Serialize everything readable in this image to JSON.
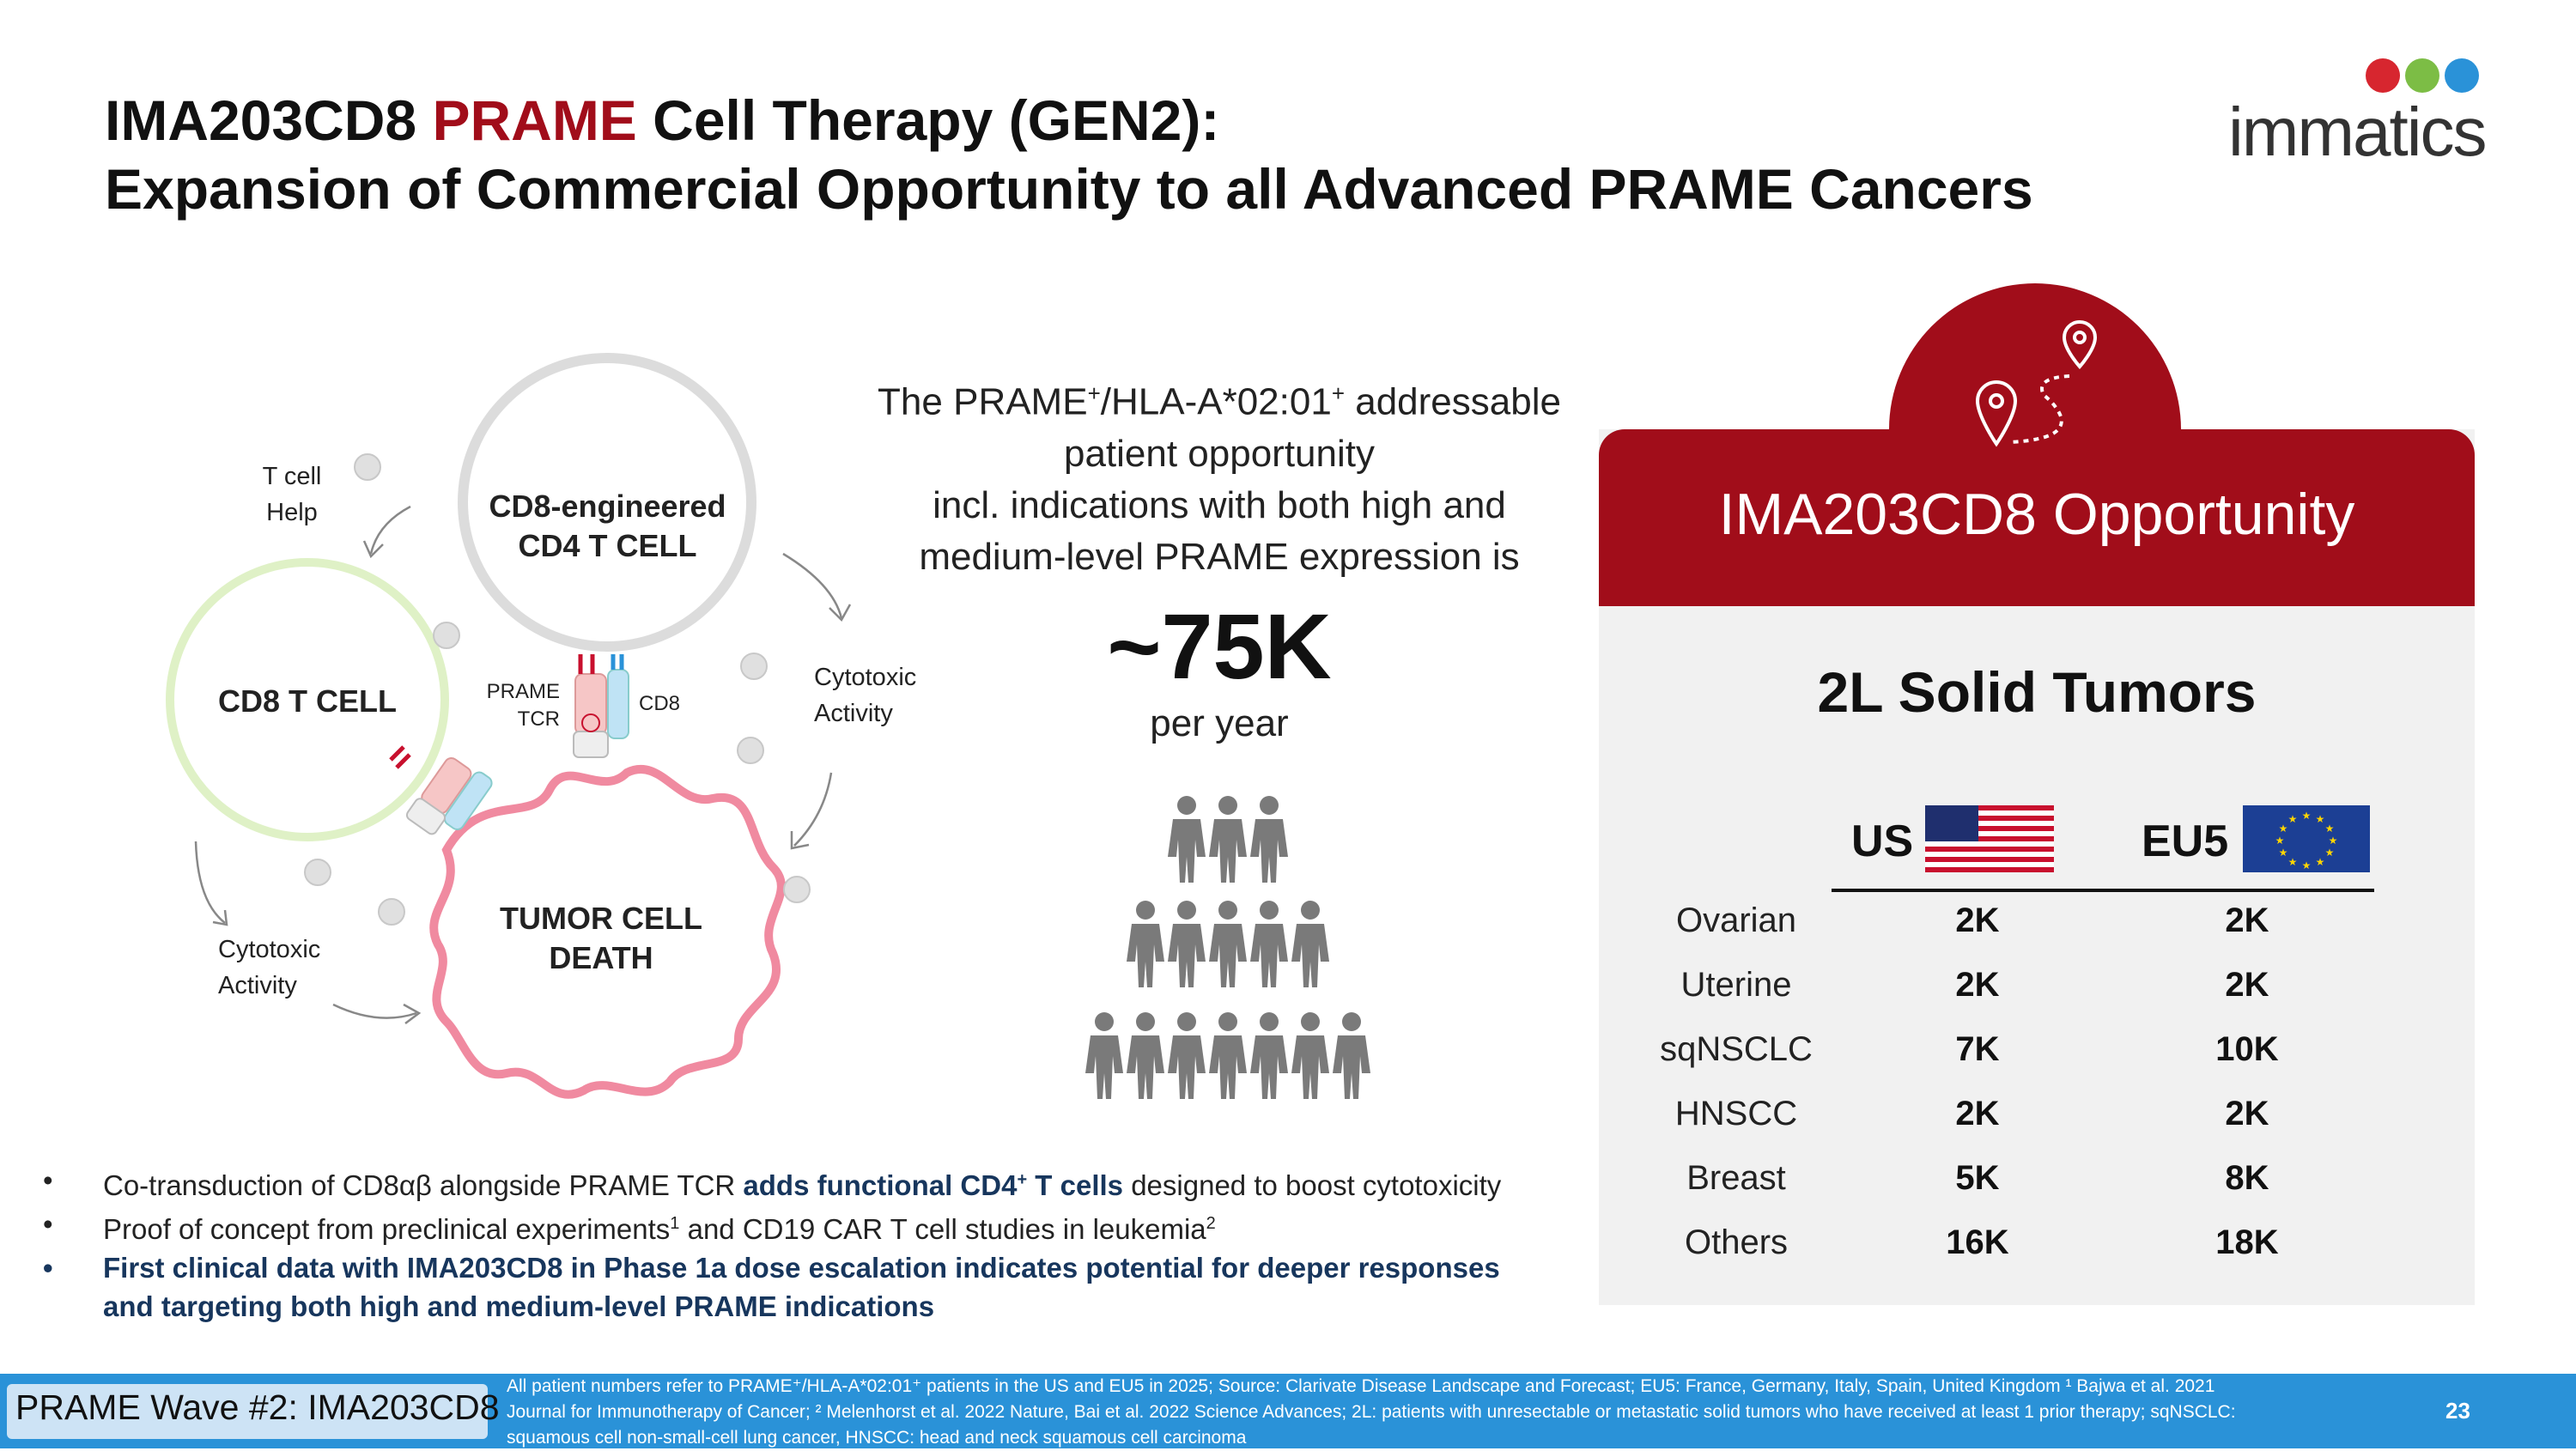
{
  "title": {
    "line1_prefix": "IMA203CD8 ",
    "line1_highlight": "PRAME",
    "line1_suffix": " Cell Therapy (GEN2):",
    "line2": "Expansion of Commercial Opportunity to all Advanced PRAME Cancers"
  },
  "logo": {
    "text": "immatics",
    "colors": [
      "#d7262f",
      "#7cbd45",
      "#2a92d8"
    ]
  },
  "diagram": {
    "t_cell_help": [
      "T cell",
      "Help"
    ],
    "engineered_cell": [
      "CD8-engineered",
      "CD4 T CELL"
    ],
    "cd8_cell": "CD8 T CELL",
    "prame_tcr": [
      "PRAME",
      "TCR"
    ],
    "cd8_receptor": "CD8",
    "cytotoxic_right": [
      "Cytotoxic",
      "Activity"
    ],
    "cytotoxic_left": [
      "Cytotoxic",
      "Activity"
    ],
    "tumor": [
      "TUMOR CELL",
      "DEATH"
    ]
  },
  "opportunity": {
    "line1_a": "The PRAME",
    "sup1": "+",
    "line1_b": "/HLA-A*02:01",
    "sup2": "+",
    "line1_c": " addressable",
    "line2": "patient opportunity",
    "line3": "incl. indications with both high and",
    "line4": "medium-level PRAME expression is",
    "big_number": "~75K",
    "per_year": "per year"
  },
  "panel": {
    "title": "IMA203CD8 Opportunity",
    "subtitle": "2L Solid Tumors",
    "col_us": "US",
    "col_eu": "EU5",
    "rows": [
      {
        "label": "Ovarian",
        "us": "2K",
        "eu": "2K"
      },
      {
        "label": "Uterine",
        "us": "2K",
        "eu": "2K"
      },
      {
        "label": "sqNSCLC",
        "us": "7K",
        "eu": "10K"
      },
      {
        "label": "HNSCC",
        "us": "2K",
        "eu": "2K"
      },
      {
        "label": "Breast",
        "us": "5K",
        "eu": "8K"
      },
      {
        "label": "Others",
        "us": "16K",
        "eu": "18K"
      }
    ]
  },
  "bullets": {
    "marker": "•",
    "b1_a": "Co-transduction of CD8αβ alongside PRAME TCR ",
    "b1_bold_a": "adds functional CD4",
    "b1_bold_sup": "+",
    "b1_bold_b": " T cells",
    "b1_b": " designed to boost cytotoxicity",
    "b2_a": "Proof of concept from preclinical experiments",
    "b2_sup1": "1",
    "b2_b": " and CD19 CAR T cell studies in leukemia",
    "b2_sup2": "2",
    "b3_line1": "First clinical data with IMA203CD8 in Phase 1a dose escalation indicates potential for deeper responses",
    "b3_line2": "and targeting both high and medium-level PRAME indications"
  },
  "footer": {
    "tag": "PRAME Wave #2: IMA203CD8",
    "note_line1": "All patient numbers refer to PRAME⁺/HLA-A*02:01⁺ patients in the US and EU5 in 2025;  Source: Clarivate Disease Landscape and Forecast; EU5: France, Germany, Italy, Spain, United Kingdom ¹ Bajwa et al. 2021",
    "note_line2": "Journal for Immunotherapy of Cancer; ² Melenhorst et al. 2022 Nature, Bai et al. 2022 Science Advances; 2L: patients with unresectable or metastatic solid tumors who have received at least 1 prior therapy; sqNSCLC:",
    "note_line3": "squamous cell non-small-cell lung cancer, HNSCC: head and neck squamous cell carcinoma",
    "page": "23"
  },
  "colors": {
    "brand_red": "#a10d1a",
    "footer_blue": "#2a92d8",
    "panel_gray": "#f1f1f1",
    "tumor_pink": "#f08aa0",
    "cd8_green": "#d8f0b8",
    "people_gray": "#7a7a7a"
  }
}
